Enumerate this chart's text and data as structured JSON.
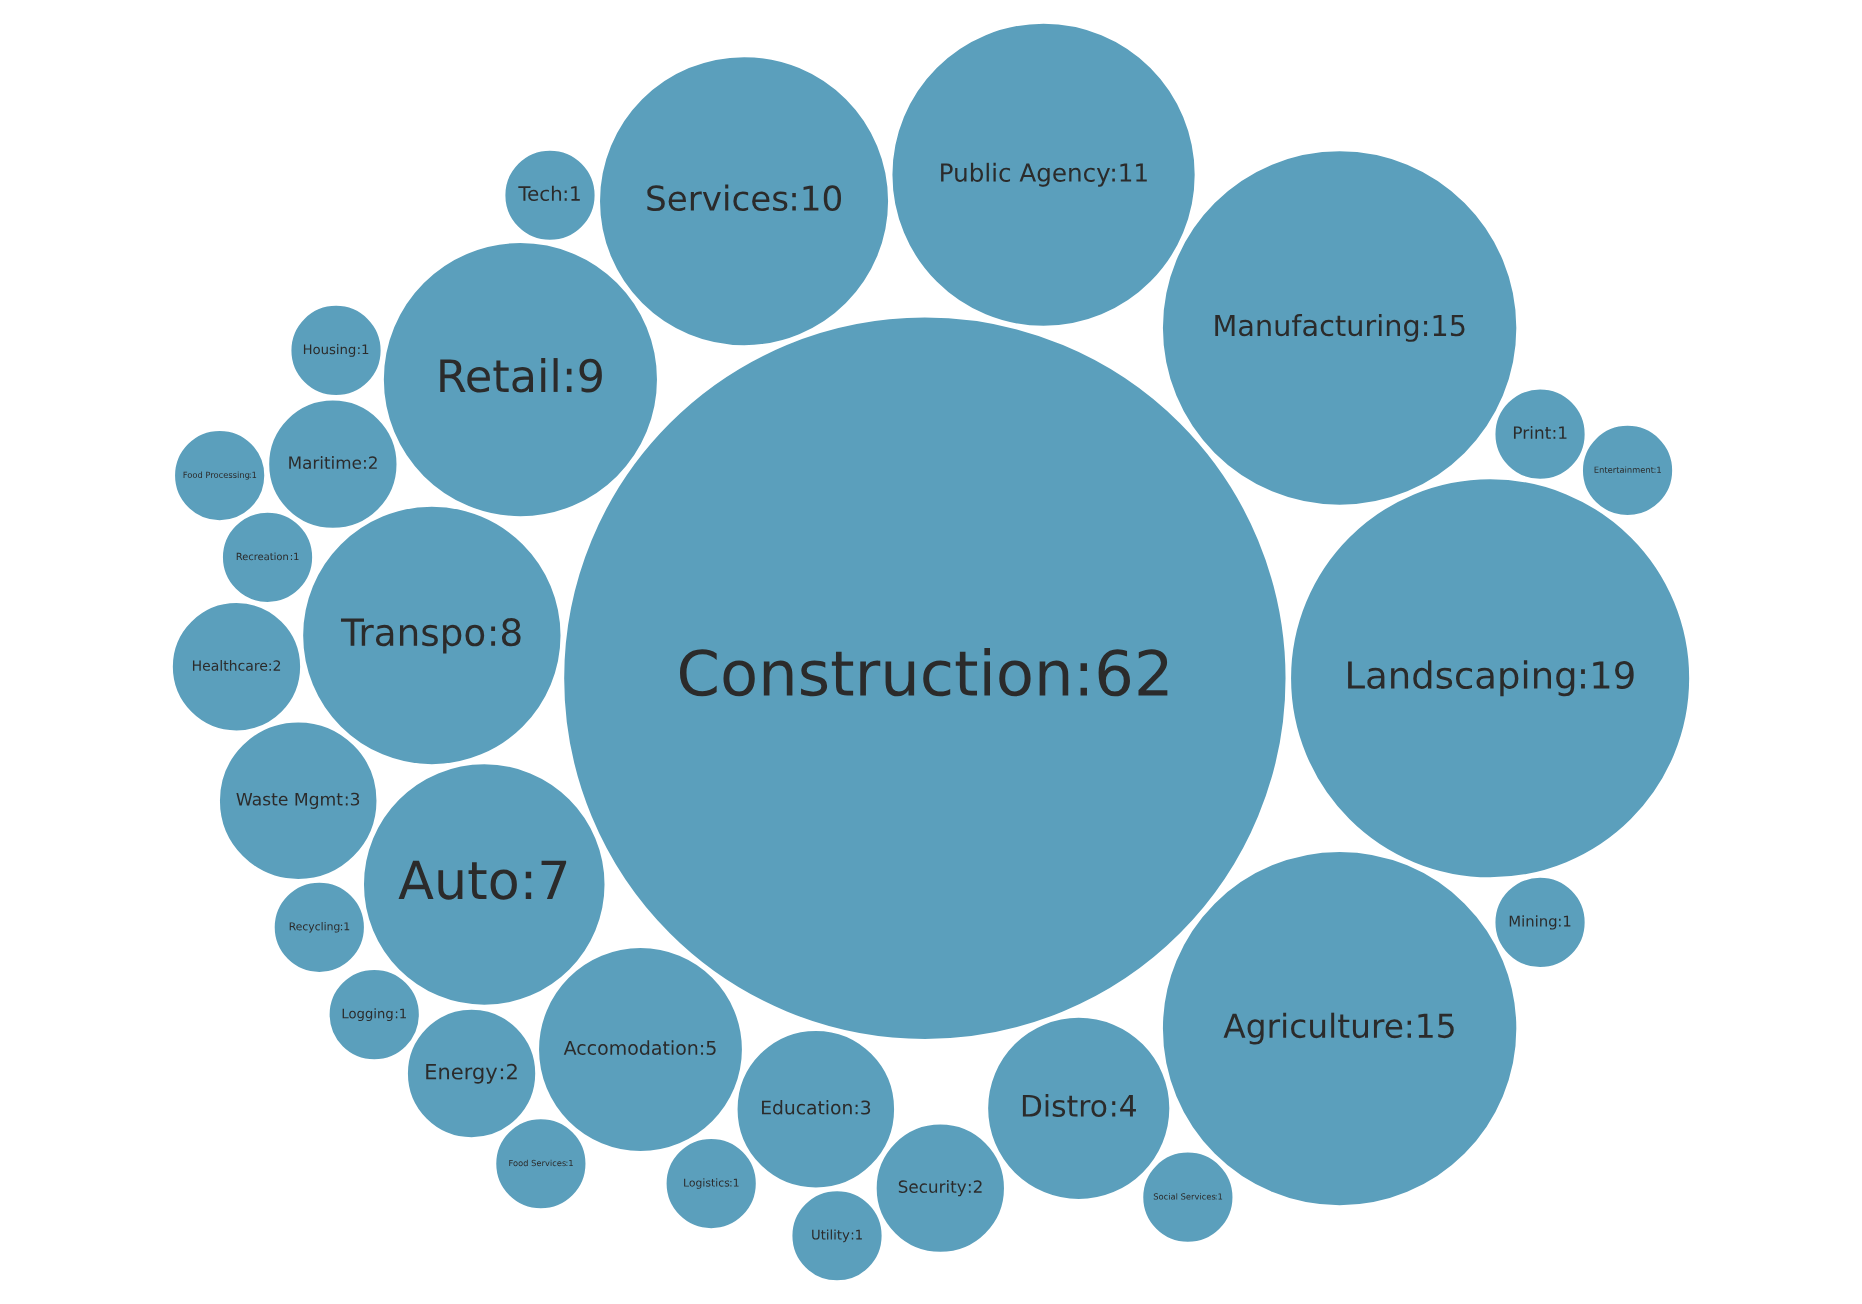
{
  "chart_data": {
    "type": "other",
    "color": "#5b9fbc",
    "categories": [
      "Construction",
      "Landscaping",
      "Manufacturing",
      "Agriculture",
      "Public Agency",
      "Services",
      "Retail",
      "Transpo",
      "Auto",
      "Accomodation",
      "Distro",
      "Education",
      "Waste Mgmt",
      "Maritime",
      "Security",
      "Healthcare",
      "Energy",
      "Recreation",
      "Recycling",
      "Print",
      "Mining",
      "Logistics",
      "Logging",
      "Housing",
      "Social Services",
      "Tech",
      "Utility",
      "Food Services",
      "Food Processing",
      "Entertainment"
    ],
    "values": [
      62,
      19,
      15,
      15,
      11,
      10,
      9,
      8,
      7,
      5,
      4,
      3,
      3,
      2,
      2,
      2,
      2,
      1,
      1,
      1,
      1,
      1,
      1,
      1,
      1,
      1,
      1,
      1,
      1,
      1
    ],
    "value_labels": [
      ":62",
      ":19",
      ":15",
      ":15",
      ":11",
      ":10",
      ":9",
      ":8",
      ":7",
      ":5",
      ":4",
      ":3",
      ":3",
      ":2",
      ":2",
      ":2",
      ":2",
      ":1",
      ":1",
      ":1",
      ":1",
      ":1",
      ":1",
      ":1",
      ":1",
      ":1",
      ":1",
      ":1",
      ":1",
      ":1"
    ]
  }
}
